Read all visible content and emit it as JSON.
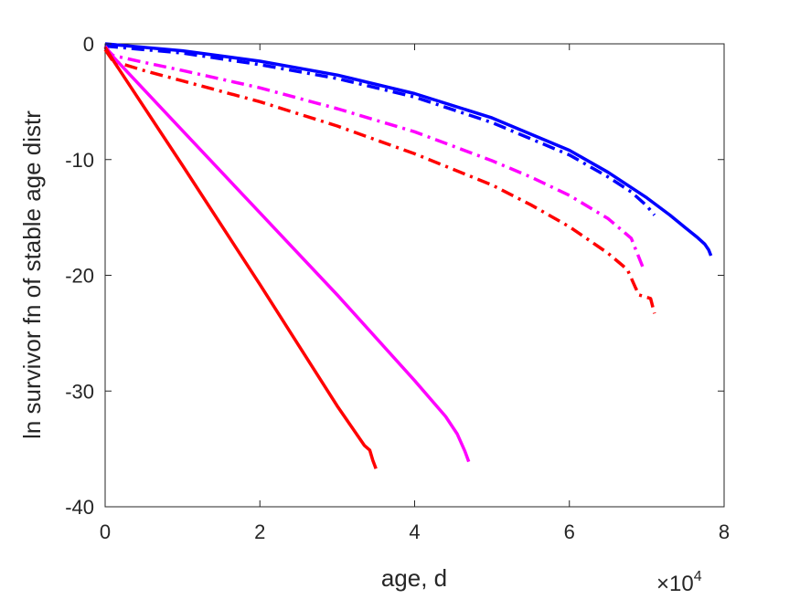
{
  "chart_data": {
    "type": "line",
    "title": "",
    "xlabel": "age, d",
    "ylabel": "ln survivor fn of stable age distr",
    "x_multiplier": "10",
    "x_multiplier_exponent": "4",
    "xlim": [
      0,
      80000
    ],
    "ylim": [
      -40,
      0
    ],
    "xticks": [
      0,
      20000,
      40000,
      60000,
      80000
    ],
    "xtick_labels": [
      "0",
      "2",
      "4",
      "6",
      "8"
    ],
    "yticks": [
      0,
      -10,
      -20,
      -30,
      -40
    ],
    "ytick_labels": [
      "0",
      "-10",
      "-20",
      "-30",
      "-40"
    ],
    "grid": false,
    "series": [
      {
        "color": "#0000ff",
        "linestyle": "solid",
        "x": [
          0,
          10000,
          20000,
          30000,
          40000,
          50000,
          60000,
          65000,
          70000,
          73000,
          75000,
          76500,
          77500,
          78000,
          78300
        ],
        "y": [
          0,
          -0.6,
          -1.5,
          -2.7,
          -4.3,
          -6.4,
          -9.2,
          -11.1,
          -13.3,
          -14.8,
          -15.9,
          -16.7,
          -17.3,
          -17.8,
          -18.3
        ]
      },
      {
        "color": "#0000ff",
        "linestyle": "dashdot",
        "x": [
          0,
          10000,
          20000,
          30000,
          40000,
          50000,
          60000,
          65000,
          68000,
          70000,
          71000
        ],
        "y": [
          -0.2,
          -0.8,
          -1.8,
          -3.0,
          -4.6,
          -6.8,
          -9.6,
          -11.5,
          -12.8,
          -14.0,
          -14.8
        ]
      },
      {
        "color": "#ff00ff",
        "linestyle": "dashdot",
        "x": [
          0,
          1000,
          5000,
          10000,
          20000,
          30000,
          40000,
          50000,
          55000,
          60000,
          65000,
          68000,
          69500
        ],
        "y": [
          -0.3,
          -1.0,
          -1.6,
          -2.3,
          -3.8,
          -5.6,
          -7.6,
          -10.1,
          -11.5,
          -13.1,
          -15.1,
          -16.8,
          -19.3
        ]
      },
      {
        "color": "#ff0000",
        "linestyle": "dashdot",
        "x": [
          0,
          1000,
          5000,
          10000,
          20000,
          30000,
          40000,
          50000,
          55000,
          60000,
          65000,
          67500,
          68500,
          69000,
          70500,
          71000
        ],
        "y": [
          -0.5,
          -1.5,
          -2.3,
          -3.2,
          -5.0,
          -7.1,
          -9.5,
          -12.2,
          -13.9,
          -15.8,
          -18.1,
          -19.5,
          -21.0,
          -21.7,
          -22.0,
          -23.3
        ]
      },
      {
        "color": "#ff00ff",
        "linestyle": "solid",
        "x": [
          0,
          1000,
          10000,
          20000,
          30000,
          40000,
          44000,
          45500,
          46500,
          47000
        ],
        "y": [
          -0.2,
          -1.1,
          -7.5,
          -14.6,
          -21.7,
          -29.1,
          -32.2,
          -33.7,
          -35.2,
          -36.1
        ]
      },
      {
        "color": "#ff0000",
        "linestyle": "solid",
        "x": [
          0,
          1000,
          10000,
          20000,
          30000,
          33500,
          34200,
          34600,
          35000
        ],
        "y": [
          -0.3,
          -1.4,
          -10.5,
          -20.8,
          -31.3,
          -34.7,
          -35.1,
          -36.0,
          -36.7
        ]
      }
    ]
  }
}
